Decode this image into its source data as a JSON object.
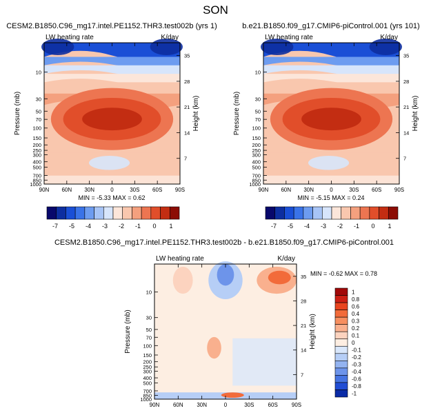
{
  "chart_data": {
    "title": "SON",
    "type": "contour",
    "panels": [
      {
        "id": "top-left",
        "title": "CESM2.B1850.C96_mg17.intel.PE1152.THR3.test002b (yrs 1)",
        "variable": "LW heating rate",
        "units": "K/day",
        "min_label": "MIN =",
        "min": "-5.33",
        "max_label": "MAX =",
        "max": "0.62",
        "ylabel": "Pressure (mb)",
        "y2label": "Height (km)",
        "x_ticks": [
          "90N",
          "60N",
          "30N",
          "0",
          "30S",
          "60S",
          "90S"
        ],
        "y_ticks": [
          "10",
          "30",
          "50",
          "70",
          "100",
          "150",
          "200",
          "250",
          "300",
          "400",
          "500",
          "700",
          "850",
          "1000"
        ],
        "y2_ticks": [
          "35",
          "28",
          "21",
          "14",
          "7"
        ],
        "colorbar_labels": [
          "-7",
          "-5",
          "-4",
          "-3",
          "-2",
          "-1",
          "0",
          "1"
        ]
      },
      {
        "id": "top-right",
        "title": "b.e21.B1850.f09_g17.CMIP6-piControl.001 (yrs 101)",
        "variable": "LW heating rate",
        "units": "K/day",
        "min_label": "MIN =",
        "min": "-5.15",
        "max_label": "MAX =",
        "max": "0.24",
        "ylabel": "Pressure (mb)",
        "y2label": "Height (km)",
        "x_ticks": [
          "90N",
          "60N",
          "30N",
          "0",
          "30S",
          "60S",
          "90S"
        ],
        "y_ticks": [
          "10",
          "30",
          "50",
          "70",
          "100",
          "150",
          "200",
          "250",
          "300",
          "400",
          "500",
          "700",
          "850",
          "1000"
        ],
        "y2_ticks": [
          "35",
          "28",
          "21",
          "14",
          "7"
        ],
        "colorbar_labels": [
          "-7",
          "-5",
          "-4",
          "-3",
          "-2",
          "-1",
          "0",
          "1"
        ]
      },
      {
        "id": "bottom",
        "title": "CESM2.B1850.C96_mg17.intel.PE1152.THR3.test002b - b.e21.B1850.f09_g17.CMIP6-piControl.001",
        "variable": "LW heating rate",
        "units": "K/day",
        "min_label": "MIN =",
        "min": "-0.62",
        "max_label": "MAX =",
        "max": "0.78",
        "ylabel": "Pressure (mb)",
        "y2label": "Height (km)",
        "x_ticks": [
          "90N",
          "60N",
          "30N",
          "0",
          "30S",
          "60S",
          "90S"
        ],
        "y_ticks": [
          "10",
          "30",
          "50",
          "70",
          "100",
          "150",
          "200",
          "250",
          "300",
          "400",
          "500",
          "700",
          "850",
          "1000"
        ],
        "y2_ticks": [
          "35",
          "28",
          "21",
          "14",
          "7"
        ],
        "colorbar_labels": [
          "1",
          "0.8",
          "0.6",
          "0.4",
          "0.3",
          "0.2",
          "0.1",
          "0",
          "-0.1",
          "-0.2",
          "-0.3",
          "-0.4",
          "-0.6",
          "-0.8",
          "-1"
        ]
      }
    ],
    "colors": {
      "full_scale": [
        "#08086b",
        "#0d2ea0",
        "#1a4fd6",
        "#3a73e8",
        "#6d9cf0",
        "#a7c4f6",
        "#d7e5fb",
        "#fce6da",
        "#f9c7ae",
        "#f4a07e",
        "#ed7551",
        "#e14e2a",
        "#c32d12",
        "#8c0d05"
      ],
      "diff_scale": [
        "#a10909",
        "#cc1f14",
        "#e8451f",
        "#f26b3a",
        "#f78f60",
        "#f9b08e",
        "#fcd3bf",
        "#fdeee2",
        "#d9e7fb",
        "#b6cef6",
        "#93b3f0",
        "#6d94ea",
        "#4674e2",
        "#214dd4",
        "#0a2ba6",
        "#06147a"
      ]
    }
  }
}
